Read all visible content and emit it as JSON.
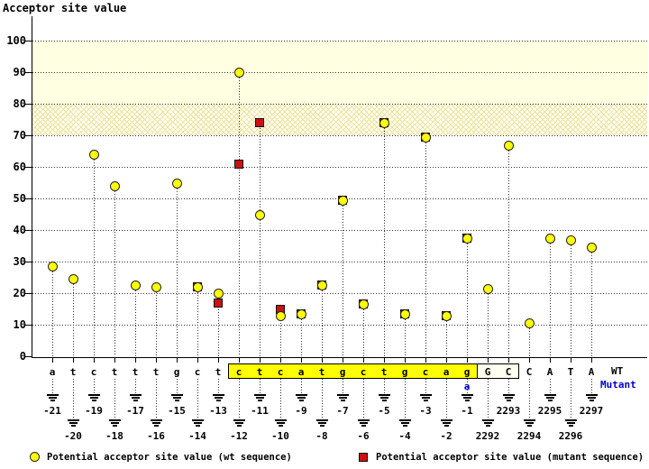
{
  "title": "Acceptor site value",
  "colors": {
    "wt_marker": "#ffff00",
    "mutant_marker": "#cc1111",
    "mutant_text": "#0000cc",
    "band_solid": "#ffffe1",
    "band_hatch_line": "#ece394",
    "acceptor_box": "#ffff00",
    "exon_box": "#fffff0"
  },
  "chart_data": {
    "type": "scatter",
    "title": "Acceptor site value",
    "ylabel": "Acceptor site value",
    "ylim": [
      0,
      100
    ],
    "ytick_step": 10,
    "grid": "dotted-horizontal",
    "legend_position": "bottom",
    "threshold_bands": [
      {
        "from": 80,
        "to": 100,
        "style": "solid"
      },
      {
        "from": 70,
        "to": 80,
        "style": "crosshatch"
      }
    ],
    "row_labels": {
      "wt": "WT",
      "mutant": "Mutant"
    },
    "legend": {
      "wt": {
        "marker": "circle",
        "label": "Potential acceptor site value (wt sequence)"
      },
      "mutant": {
        "marker": "square",
        "label": "Potential acceptor site value (mutant sequence)"
      }
    },
    "positions": [
      {
        "pos": "-21",
        "base": "a",
        "region": "intron",
        "wt": 28.5,
        "mutant": null
      },
      {
        "pos": "-20",
        "base": "t",
        "region": "intron",
        "wt": 24.5,
        "mutant": null
      },
      {
        "pos": "-19",
        "base": "c",
        "region": "intron",
        "wt": 64,
        "mutant": null
      },
      {
        "pos": "-18",
        "base": "t",
        "region": "intron",
        "wt": 54,
        "mutant": null
      },
      {
        "pos": "-17",
        "base": "t",
        "region": "intron",
        "wt": 22.5,
        "mutant": null
      },
      {
        "pos": "-16",
        "base": "t",
        "region": "intron",
        "wt": 22,
        "mutant": null
      },
      {
        "pos": "-15",
        "base": "g",
        "region": "intron",
        "wt": 55,
        "mutant": null
      },
      {
        "pos": "-14",
        "base": "c",
        "region": "intron",
        "wt": 22,
        "mutant": 22
      },
      {
        "pos": "-13",
        "base": "t",
        "region": "intron",
        "wt": 20,
        "mutant": 17
      },
      {
        "pos": "-12",
        "base": "c",
        "region": "acceptor_site",
        "wt": 90,
        "mutant": 61
      },
      {
        "pos": "-11",
        "base": "t",
        "region": "acceptor_site",
        "wt": 45,
        "mutant": 74
      },
      {
        "pos": "-10",
        "base": "c",
        "region": "acceptor_site",
        "wt": 13,
        "mutant": 15
      },
      {
        "pos": "-9",
        "base": "a",
        "region": "acceptor_site",
        "wt": 13.5,
        "mutant": 13.5
      },
      {
        "pos": "-8",
        "base": "t",
        "region": "acceptor_site",
        "wt": 22.5,
        "mutant": 22.5
      },
      {
        "pos": "-7",
        "base": "g",
        "region": "acceptor_site",
        "wt": 49.5,
        "mutant": 49.5
      },
      {
        "pos": "-6",
        "base": "c",
        "region": "acceptor_site",
        "wt": 16.5,
        "mutant": 16.5
      },
      {
        "pos": "-5",
        "base": "t",
        "region": "acceptor_site",
        "wt": 74,
        "mutant": 74
      },
      {
        "pos": "-4",
        "base": "g",
        "region": "acceptor_site",
        "wt": 13.5,
        "mutant": 13.5
      },
      {
        "pos": "-3",
        "base": "c",
        "region": "acceptor_site",
        "wt": 69.5,
        "mutant": 69.5
      },
      {
        "pos": "-2",
        "base": "a",
        "region": "acceptor_site",
        "wt": 13,
        "mutant": 13
      },
      {
        "pos": "-1",
        "base": "g",
        "mutant_base": "a",
        "region": "acceptor_site",
        "wt": 37.5,
        "mutant": 37.5
      },
      {
        "pos": "2292",
        "base": "G",
        "region": "exon_boxed",
        "wt": 21.5,
        "mutant": null
      },
      {
        "pos": "2293",
        "base": "C",
        "region": "exon_boxed",
        "wt": 67,
        "mutant": null
      },
      {
        "pos": "2294",
        "base": "C",
        "region": "exon",
        "wt": 10.5,
        "mutant": null
      },
      {
        "pos": "2295",
        "base": "A",
        "region": "exon",
        "wt": 37.5,
        "mutant": null
      },
      {
        "pos": "2296",
        "base": "T",
        "region": "exon",
        "wt": 37,
        "mutant": null
      },
      {
        "pos": "2297",
        "base": "A",
        "region": "exon",
        "wt": 34.5,
        "mutant": null
      }
    ]
  }
}
